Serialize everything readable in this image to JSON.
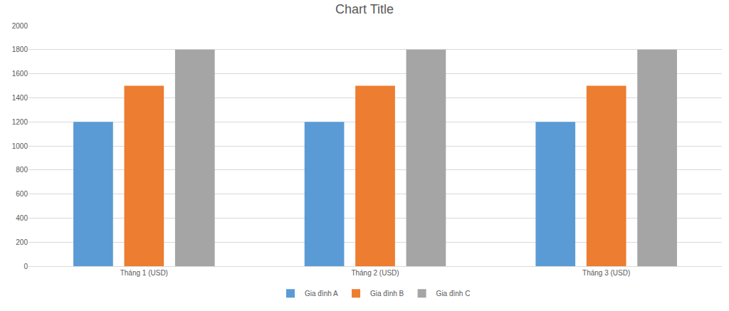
{
  "chart_data": {
    "type": "bar",
    "title": "Chart Title",
    "categories": [
      "Tháng 1 (USD)",
      "Tháng 2 (USD)",
      "Tháng 3 (USD)"
    ],
    "series": [
      {
        "name": "Gia đình A",
        "color": "#5b9bd5",
        "values": [
          1200,
          1200,
          1200
        ]
      },
      {
        "name": "Gia đình B",
        "color": "#ed7d31",
        "values": [
          1500,
          1500,
          1500
        ]
      },
      {
        "name": "Gia đình C",
        "color": "#a5a5a5",
        "values": [
          1800,
          1800,
          1800
        ]
      }
    ],
    "ylim": [
      0,
      2000
    ],
    "yticks": [
      0,
      200,
      400,
      600,
      800,
      1000,
      1200,
      1400,
      1600,
      1800,
      2000
    ],
    "grid": true,
    "legend": "bottom"
  }
}
